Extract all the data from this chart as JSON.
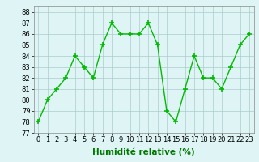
{
  "x": [
    0,
    1,
    2,
    3,
    4,
    5,
    6,
    7,
    8,
    9,
    10,
    11,
    12,
    13,
    14,
    15,
    16,
    17,
    18,
    19,
    20,
    21,
    22,
    23
  ],
  "y": [
    78,
    80,
    81,
    82,
    84,
    83,
    82,
    85,
    87,
    86,
    86,
    86,
    87,
    85,
    79,
    78,
    81,
    84,
    82,
    82,
    81,
    83,
    85,
    86
  ],
  "line_color": "#00bb00",
  "marker": "+",
  "marker_size": 4,
  "linewidth": 1.0,
  "xlabel": "Humidité relative (%)",
  "xlabel_fontsize": 7.5,
  "xlabel_color": "#007700",
  "ylim": [
    77,
    88.5
  ],
  "yticks": [
    77,
    78,
    79,
    80,
    81,
    82,
    83,
    84,
    85,
    86,
    87,
    88
  ],
  "xticks": [
    0,
    1,
    2,
    3,
    4,
    5,
    6,
    7,
    8,
    9,
    10,
    11,
    12,
    13,
    14,
    15,
    16,
    17,
    18,
    19,
    20,
    21,
    22,
    23
  ],
  "tick_fontsize": 6.0,
  "background_color": "#dff5f5",
  "grid_color": "#aacccc",
  "grid_linewidth": 0.5
}
